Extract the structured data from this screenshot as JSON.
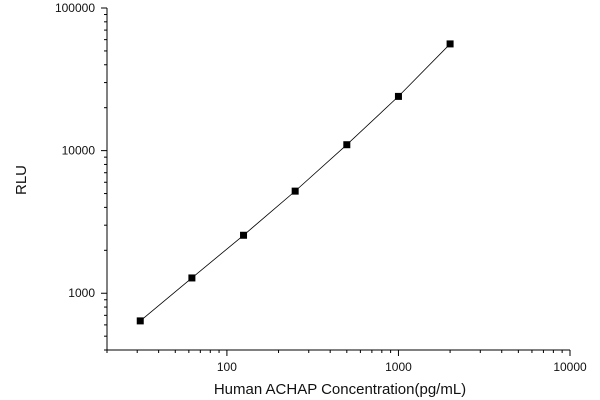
{
  "chart_data": {
    "type": "scatter",
    "xlabel": "Human ACHAP Concentration(pg/mL)",
    "ylabel": "RLU",
    "x_scale": "log",
    "y_scale": "log",
    "xlim": [
      20,
      10000
    ],
    "ylim": [
      400,
      100000
    ],
    "x_ticks": [
      100,
      1000,
      10000
    ],
    "x_tick_labels": [
      "100",
      "1000",
      "10000"
    ],
    "y_ticks": [
      1000,
      10000,
      100000
    ],
    "y_tick_labels": [
      "1000",
      "10000",
      "100000"
    ],
    "grid": false,
    "legend": "none",
    "marker": "square",
    "marker_color": "#000000",
    "line_color": "#000000",
    "series": [
      {
        "x": [
          31.25,
          62.5,
          125,
          250,
          500,
          1000,
          2000
        ],
        "y": [
          640,
          1280,
          2550,
          5200,
          11000,
          24000,
          56000
        ]
      }
    ]
  }
}
